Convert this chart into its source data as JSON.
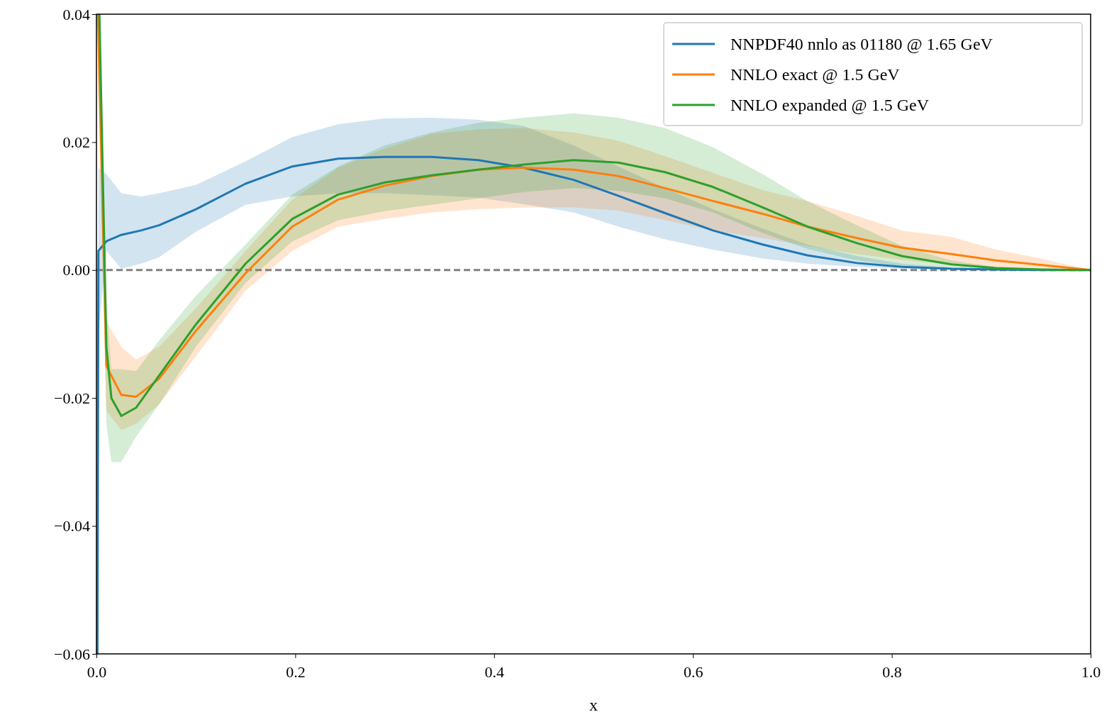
{
  "chart_data": {
    "type": "line",
    "xlabel": "x",
    "xlim": [
      0,
      1
    ],
    "ylim": [
      -0.06,
      0.04
    ],
    "xticks": [
      {
        "value": 0,
        "label": "0.0"
      },
      0.2,
      0.4,
      0.6,
      0.8,
      {
        "value": 1,
        "label": "1.0"
      }
    ],
    "yticks": [
      {
        "value": -0.06,
        "label": "−0.06"
      },
      {
        "value": -0.04,
        "label": "−0.04"
      },
      {
        "value": -0.02,
        "label": "−0.02"
      },
      {
        "value": 0,
        "label": "0.00"
      },
      0.02,
      0.04
    ],
    "legend": "top right",
    "grid": false,
    "line_style": "solid",
    "marker": "none",
    "ref_lines": [
      {
        "axis": "y",
        "value": 0,
        "color": "#808080",
        "line_style": "dashed"
      }
    ],
    "series": [
      {
        "name": "NNPDF40 nnlo as 01180 @ 1.65 GeV",
        "color": "#1f77b4",
        "x": [
          0.001,
          0.002,
          0.01,
          0.025,
          0.045,
          0.063,
          0.1,
          0.15,
          0.197,
          0.243,
          0.29,
          0.337,
          0.384,
          0.43,
          0.48,
          0.525,
          0.572,
          0.62,
          0.67,
          0.715,
          0.765,
          0.81,
          0.86,
          0.905,
          0.95,
          1.0
        ],
        "values": [
          -0.06,
          0.003,
          0.0045,
          0.0055,
          0.0062,
          0.007,
          0.0095,
          0.0135,
          0.0162,
          0.0174,
          0.0177,
          0.0177,
          0.0172,
          0.016,
          0.0141,
          0.0116,
          0.0089,
          0.0062,
          0.004,
          0.0023,
          0.0011,
          0.0005,
          0.0002,
          0.0001,
          0,
          0
        ],
        "lower": [
          -0.06,
          -0.01,
          0.003,
          0.0002,
          0.001,
          0.002,
          0.006,
          0.0102,
          0.0115,
          0.012,
          0.012,
          0.0117,
          0.0113,
          0.0103,
          0.009,
          0.0068,
          0.0048,
          0.0032,
          0.0018,
          0.001,
          0.0005,
          0.0002,
          0.0001,
          0,
          0,
          0
        ],
        "upper": [
          -0.06,
          0.016,
          0.015,
          0.012,
          0.0115,
          0.012,
          0.0133,
          0.017,
          0.0208,
          0.0228,
          0.0237,
          0.0238,
          0.0235,
          0.0225,
          0.0195,
          0.0162,
          0.0128,
          0.0095,
          0.0065,
          0.004,
          0.0022,
          0.001,
          0.0004,
          0.0002,
          0.0001,
          0
        ]
      },
      {
        "name": "NNLO exact @ 1.5 GeV",
        "color": "#ff7f0e",
        "x": [
          0.0015,
          0.01,
          0.025,
          0.04,
          0.063,
          0.1,
          0.15,
          0.197,
          0.243,
          0.29,
          0.337,
          0.384,
          0.43,
          0.48,
          0.525,
          0.572,
          0.62,
          0.67,
          0.715,
          0.765,
          0.81,
          0.86,
          0.905,
          0.95,
          1.0
        ],
        "values": [
          0.04,
          -0.015,
          -0.0195,
          -0.0198,
          -0.017,
          -0.0095,
          -0.0005,
          0.0068,
          0.011,
          0.0132,
          0.0147,
          0.0157,
          0.016,
          0.0157,
          0.0147,
          0.0128,
          0.0108,
          0.0088,
          0.0068,
          0.005,
          0.0035,
          0.0025,
          0.0015,
          0.0008,
          0
        ],
        "lower": [
          0.03,
          -0.022,
          -0.025,
          -0.024,
          -0.021,
          -0.0135,
          -0.0032,
          0.003,
          0.0068,
          0.008,
          0.009,
          0.0095,
          0.0098,
          0.0098,
          0.0093,
          0.0078,
          0.0062,
          0.005,
          0.0038,
          0.0025,
          0.0016,
          0.0008,
          0.0004,
          0.0001,
          0
        ],
        "upper": [
          0.04,
          -0.008,
          -0.012,
          -0.014,
          -0.012,
          -0.006,
          0.003,
          0.011,
          0.016,
          0.019,
          0.0213,
          0.022,
          0.0222,
          0.0215,
          0.0202,
          0.0178,
          0.0152,
          0.0125,
          0.0108,
          0.0085,
          0.0062,
          0.0052,
          0.0032,
          0.0018,
          0
        ]
      },
      {
        "name": "NNLO expanded @ 1.5 GeV",
        "color": "#2ca02c",
        "x": [
          0.003,
          0.01,
          0.015,
          0.025,
          0.04,
          0.063,
          0.1,
          0.15,
          0.197,
          0.243,
          0.29,
          0.337,
          0.384,
          0.43,
          0.48,
          0.525,
          0.572,
          0.62,
          0.67,
          0.715,
          0.765,
          0.81,
          0.86,
          0.905,
          0.95,
          1.0
        ],
        "values": [
          0.04,
          -0.012,
          -0.02,
          -0.0228,
          -0.0215,
          -0.0165,
          -0.0085,
          0.001,
          0.008,
          0.0118,
          0.0137,
          0.0148,
          0.0157,
          0.0165,
          0.0172,
          0.0168,
          0.0153,
          0.013,
          0.0098,
          0.0068,
          0.0042,
          0.0022,
          0.0009,
          0.0003,
          0.0001,
          0
        ],
        "lower": [
          0.03,
          -0.024,
          -0.03,
          -0.03,
          -0.026,
          -0.021,
          -0.012,
          -0.002,
          0.0045,
          0.0078,
          0.0092,
          0.0102,
          0.0112,
          0.0122,
          0.0128,
          0.0124,
          0.0112,
          0.009,
          0.0058,
          0.0033,
          0.0015,
          0.0006,
          0.0002,
          0.0001,
          0,
          0
        ],
        "upper": [
          0.04,
          -0.005,
          -0.0155,
          -0.0155,
          -0.0158,
          -0.011,
          -0.004,
          0.004,
          0.0118,
          0.0162,
          0.0195,
          0.0215,
          0.023,
          0.0238,
          0.0245,
          0.0238,
          0.0222,
          0.0192,
          0.015,
          0.0108,
          0.007,
          0.0038,
          0.0015,
          0.0005,
          0.0002,
          0
        ]
      }
    ]
  }
}
